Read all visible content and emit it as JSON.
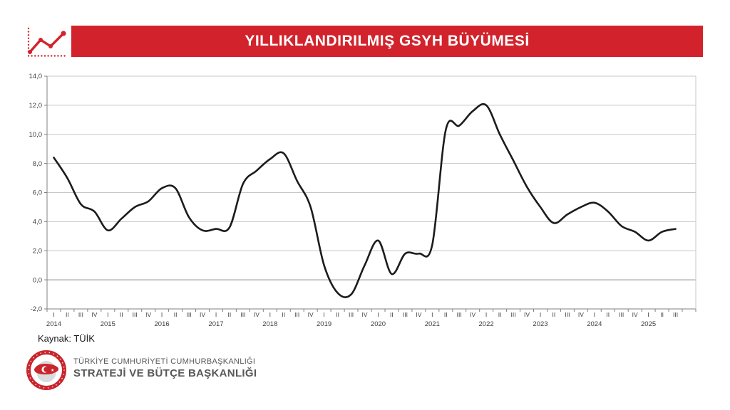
{
  "header": {
    "title": "YILLIKLANDIRILMIŞ GSYH BÜYÜMESİ",
    "logo_icon": "line-chart-icon"
  },
  "colors": {
    "banner_red": "#d2232c",
    "seal_red": "#c9252d",
    "line_black": "#1c1c1c",
    "grid_gray": "#c6c7c8",
    "zero_line_gray": "#8c8c8c",
    "axis_gray": "#808080",
    "label_dark": "#404040",
    "footer_gray": "#58595b"
  },
  "chart_data": {
    "type": "line",
    "title": "YILLIKLANDIRILMIŞ GSYH BÜYÜMESİ",
    "ylabel": "",
    "xlabel": "",
    "ylim": [
      -2,
      14
    ],
    "ytick_step": 2,
    "ytick_labels": [
      "14,0",
      "12,0",
      "10,0",
      "8,0",
      "6,0",
      "4,0",
      "2,0",
      "0,0",
      "-2,0"
    ],
    "grid": true,
    "legend": "none",
    "quarter_ticks": [
      "I",
      "II",
      "III",
      "IV",
      "I",
      "II",
      "III",
      "IV",
      "I",
      "II",
      "III",
      "IV",
      "I",
      "II",
      "III",
      "IV",
      "I",
      "II",
      "III",
      "IV",
      "I",
      "II",
      "III",
      "IV",
      "I",
      "II",
      "III",
      "IV",
      "I",
      "II",
      "III",
      "IV",
      "I",
      "II",
      "III",
      "IV",
      "I",
      "II",
      "III",
      "IV",
      "I",
      "II",
      "III",
      "IV",
      "I",
      "II",
      "III"
    ],
    "year_labels": [
      "2014",
      "2015",
      "2016",
      "2017",
      "2018",
      "2019",
      "2020",
      "2021",
      "2022",
      "2023",
      "2024",
      "2025"
    ],
    "values": [
      8.4,
      7.0,
      5.2,
      4.7,
      3.4,
      4.2,
      5.0,
      5.4,
      6.3,
      6.3,
      4.3,
      3.4,
      3.5,
      3.6,
      6.6,
      7.5,
      8.3,
      8.7,
      6.8,
      5.0,
      1.0,
      -0.9,
      -1.0,
      1.0,
      2.7,
      0.4,
      1.8,
      1.8,
      2.4,
      10.3,
      10.6,
      11.6,
      12.0,
      10.0,
      8.2,
      6.4,
      5.0,
      3.9,
      4.5,
      5.0,
      5.3,
      4.7,
      3.7,
      3.3,
      2.7,
      3.3,
      3.5
    ]
  },
  "source_note": "Kaynak: TÜİK",
  "footer": {
    "org_line1": "TÜRKİYE CUMHURİYETİ CUMHURBAŞKANLIĞI",
    "org_line2": "STRATEJİ VE BÜTÇE BAŞKANLIĞI"
  }
}
